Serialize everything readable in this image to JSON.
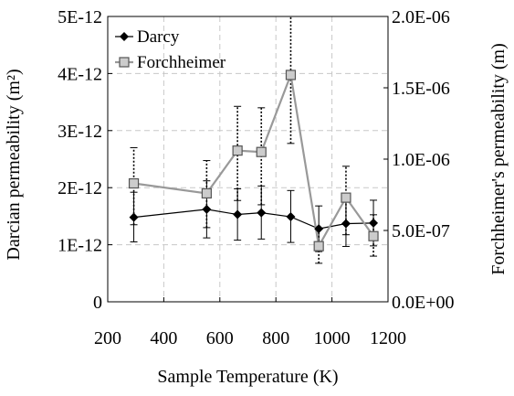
{
  "chart_data": {
    "type": "line",
    "xlabel": "Sample Temperature (K)",
    "ylabel_left": "Darcian permeability (m²)",
    "ylabel_right": "Forchheimer's permeability (m)",
    "xlim": [
      200,
      1200
    ],
    "ylim_left": [
      0,
      5e-12
    ],
    "ylim_right": [
      0,
      2e-06
    ],
    "grid": true,
    "legend_position": "top-left",
    "x_ticks": [
      200,
      400,
      600,
      800,
      1000,
      1200
    ],
    "x_tick_labels": [
      "200",
      "400",
      "600",
      "800",
      "1000",
      "1200"
    ],
    "y_left_ticks": [
      0,
      1e-12,
      2e-12,
      3e-12,
      4e-12,
      5e-12
    ],
    "y_left_tick_labels": [
      "0",
      "1E-12",
      "2E-12",
      "3E-12",
      "4E-12",
      "5E-12"
    ],
    "y_right_ticks": [
      0,
      5e-07,
      1e-06,
      1.5e-06,
      2e-06
    ],
    "y_right_tick_labels": [
      "0.0E+00",
      "5.0E-07",
      "1.0E-06",
      "1.5E-06",
      "2.0E-06"
    ],
    "series": [
      {
        "name": "Darcy",
        "axis": "left",
        "marker": "diamond",
        "color": "#000000",
        "x": [
          293,
          553,
          663,
          748,
          853,
          953,
          1050,
          1148
        ],
        "y": [
          1.48e-12,
          1.62e-12,
          1.53e-12,
          1.56e-12,
          1.49e-12,
          1.28e-12,
          1.37e-12,
          1.38e-12
        ],
        "error_low": [
          1.05e-12,
          1.12e-12,
          1.08e-12,
          1.1e-12,
          1.04e-12,
          8.8e-13,
          9.7e-13,
          9.8e-13
        ],
        "error_high": [
          1.92e-12,
          2.12e-12,
          1.98e-12,
          2.03e-12,
          1.95e-12,
          1.68e-12,
          1.77e-12,
          1.78e-12
        ]
      },
      {
        "name": "Forchheimer",
        "axis": "right",
        "marker": "square",
        "color": "#999999",
        "x": [
          293,
          553,
          663,
          748,
          853,
          953,
          1050,
          1148
        ],
        "y": [
          8.3e-07,
          7.6e-07,
          1.06e-06,
          1.05e-06,
          1.59e-06,
          3.9e-07,
          7.3e-07,
          4.6e-07
        ],
        "error_low": [
          5.4e-07,
          5.2e-07,
          7.1e-07,
          6.8e-07,
          1.11e-06,
          2.7e-07,
          4.7e-07,
          3.2e-07
        ],
        "error_high": [
          1.08e-06,
          9.9e-07,
          1.37e-06,
          1.36e-06,
          2e-06,
          5.1e-07,
          9.5e-07,
          6.1e-07
        ]
      }
    ]
  }
}
